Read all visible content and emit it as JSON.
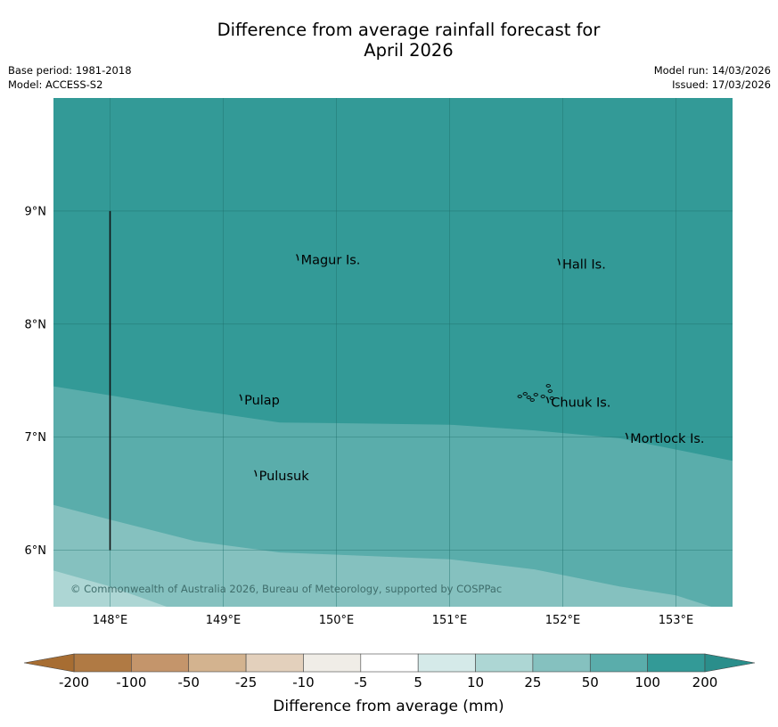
{
  "title": {
    "line1": "Difference from average rainfall forecast for",
    "line2": "April 2026"
  },
  "meta": {
    "base_period": "Base period: 1981-2018",
    "model": "Model: ACCESS-S2",
    "model_run": "Model run: 14/03/2026",
    "issued": "Issued: 17/03/2026"
  },
  "map": {
    "lon_range": [
      147.5,
      153.5
    ],
    "lat_range": [
      5.5,
      10.0
    ],
    "lon_ticks": [
      {
        "value": 148,
        "label": "148°E"
      },
      {
        "value": 149,
        "label": "149°E"
      },
      {
        "value": 150,
        "label": "150°E"
      },
      {
        "value": 151,
        "label": "151°E"
      },
      {
        "value": 152,
        "label": "152°E"
      },
      {
        "value": 153,
        "label": "153°E"
      }
    ],
    "lat_ticks": [
      {
        "value": 9,
        "label": "9°N"
      },
      {
        "value": 8,
        "label": "8°N"
      },
      {
        "value": 7,
        "label": "7°N"
      },
      {
        "value": 6,
        "label": "6°N"
      }
    ],
    "places": [
      {
        "name": "Magur Is.",
        "lon": 149.67,
        "lat": 8.57
      },
      {
        "name": "Hall Is.",
        "lon": 151.98,
        "lat": 8.53
      },
      {
        "name": "Pulap",
        "lon": 149.17,
        "lat": 7.33
      },
      {
        "name": "Chuuk Is.",
        "lon": 151.88,
        "lat": 7.31
      },
      {
        "name": "Mortlock Is.",
        "lon": 152.58,
        "lat": 6.99
      },
      {
        "name": "Pulusuk",
        "lon": 149.3,
        "lat": 6.66
      }
    ],
    "boundary_line": {
      "lon": 148.0,
      "lat_from": 6.0,
      "lat_to": 9.0
    },
    "anomaly_zones": [
      {
        "category": "100 to 200",
        "color": "#339a97",
        "lower_edge": [
          [
            147.5,
            7.45
          ],
          [
            148.0,
            7.37
          ],
          [
            148.75,
            7.24
          ],
          [
            149.5,
            7.13
          ],
          [
            150.25,
            7.12
          ],
          [
            151.0,
            7.11
          ],
          [
            151.75,
            7.06
          ],
          [
            152.5,
            6.99
          ],
          [
            153.5,
            6.79
          ]
        ]
      },
      {
        "category": "50 to 100",
        "color": "#5aadab",
        "lower_edge": [
          [
            147.5,
            6.4
          ],
          [
            148.0,
            6.27
          ],
          [
            148.75,
            6.08
          ],
          [
            149.5,
            5.98
          ],
          [
            150.25,
            5.95
          ],
          [
            151.0,
            5.92
          ],
          [
            151.75,
            5.83
          ],
          [
            152.5,
            5.68
          ],
          [
            153.0,
            5.6
          ],
          [
            153.5,
            5.44
          ]
        ]
      },
      {
        "category": "25 to 50",
        "color": "#85c1bf",
        "lower_edge": [
          [
            147.5,
            5.82
          ],
          [
            148.0,
            5.68
          ],
          [
            148.5,
            5.5
          ]
        ]
      },
      {
        "category": "10 to 25",
        "color": "#add6d4",
        "lower_edge": [
          [
            147.5,
            5.5
          ]
        ]
      }
    ],
    "copyright": "© Commonwealth of Australia 2026, Bureau of Meteorology, supported by COSPPac"
  },
  "colorbar": {
    "title": "Difference from average (mm)",
    "ticks": [
      "-200",
      "-100",
      "-50",
      "-25",
      "-10",
      "-5",
      "5",
      "10",
      "25",
      "50",
      "100",
      "200"
    ],
    "colors": [
      "#b07a44",
      "#c4956b",
      "#d3b38f",
      "#e3d0bc",
      "#f0ede7",
      "#ffffff",
      "#d5eae9",
      "#add6d4",
      "#85c1bf",
      "#5aadab",
      "#339a97"
    ],
    "under_color": "#a76d32",
    "over_color": "#2a8e8b"
  }
}
